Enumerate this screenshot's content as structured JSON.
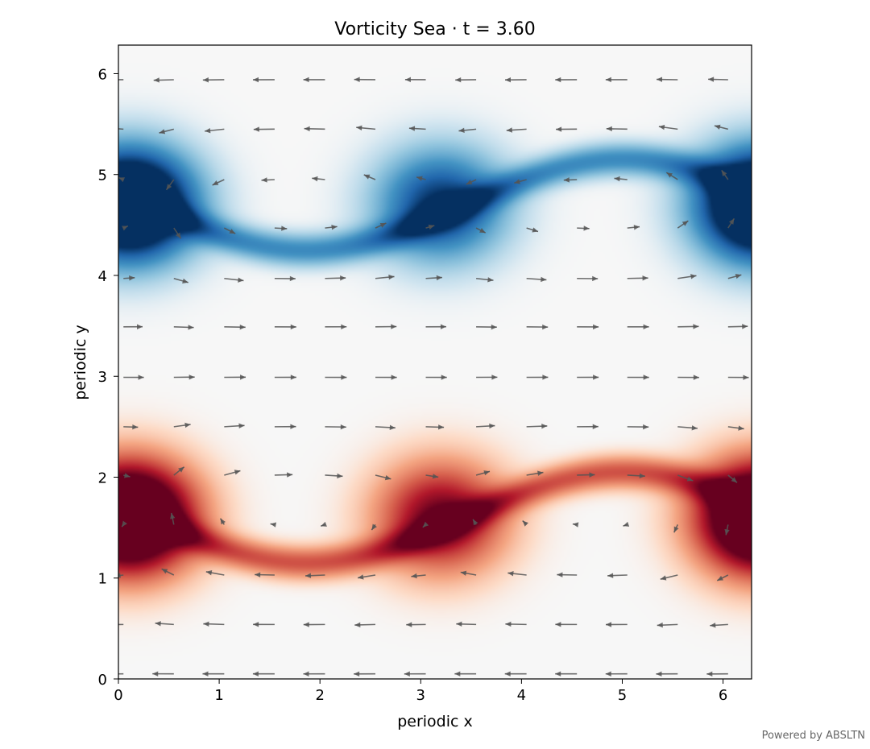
{
  "chart_data": {
    "type": "heatmap",
    "title": "Vorticity Sea · t = 3.60",
    "xlabel": "periodic x",
    "ylabel": "periodic y",
    "xlim": [
      0,
      6.2832
    ],
    "ylim": [
      0,
      6.2832
    ],
    "xticks": [
      0,
      1,
      2,
      3,
      4,
      5,
      6
    ],
    "yticks": [
      0,
      1,
      2,
      3,
      4,
      5,
      6
    ],
    "xtick_labels": [
      "0",
      "1",
      "2",
      "3",
      "4",
      "5",
      "6"
    ],
    "ytick_labels": [
      "0",
      "1",
      "2",
      "3",
      "4",
      "5",
      "6"
    ],
    "colormap": "RdBu",
    "colors": {
      "positive": "#67001f",
      "negative": "#053061",
      "neutral": "#f7f7f7",
      "arrow": "#555555"
    },
    "field": {
      "description_of_structures": "two shear layers rolled into vortices",
      "layers": [
        {
          "sign": 1,
          "center_y": 1.6,
          "vortex_x": [
            0.1,
            3.2,
            6.4
          ],
          "amplitude": 1.0
        },
        {
          "sign": -1,
          "center_y": 4.7,
          "vortex_x": [
            0.1,
            3.2,
            6.4
          ],
          "amplitude": 1.0
        }
      ]
    },
    "quiver": {
      "x": [
        0.05,
        0.55,
        1.05,
        1.55,
        2.05,
        2.55,
        3.05,
        3.55,
        4.05,
        4.55,
        5.05,
        5.55,
        6.05
      ],
      "y": [
        0.05,
        0.54,
        1.03,
        1.53,
        2.02,
        2.5,
        2.99,
        3.49,
        3.97,
        4.47,
        4.95,
        5.45,
        5.94
      ]
    },
    "grid": false,
    "legend": "none"
  },
  "footer": {
    "credit": "Powered by ABSLTN"
  }
}
